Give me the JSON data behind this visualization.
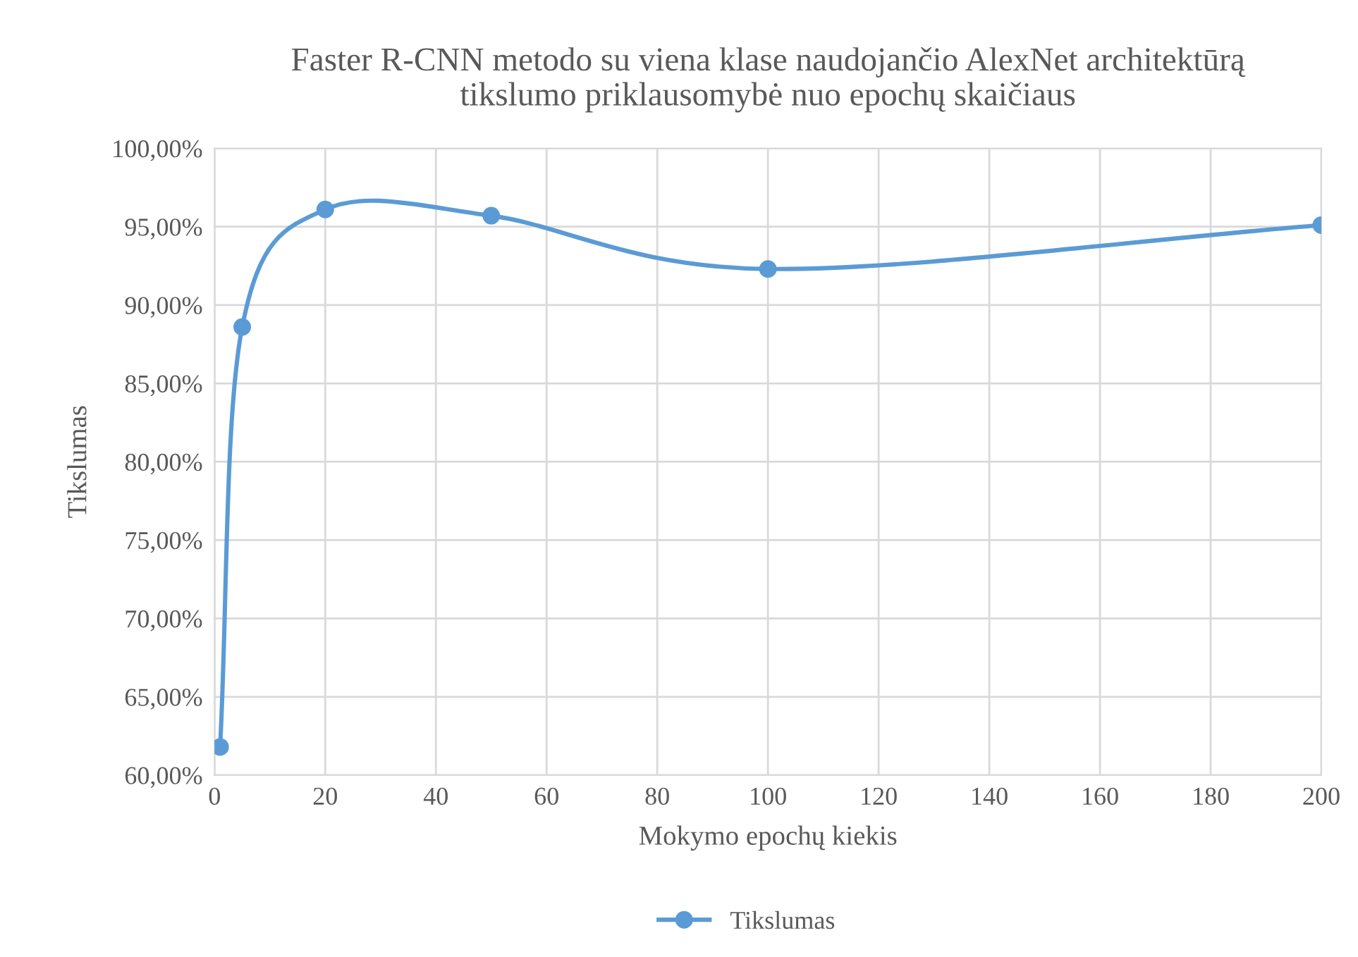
{
  "chart_data": {
    "type": "line",
    "title": "Faster R-CNN metodo su viena klase naudojančio AlexNet architektūrą\ntikslumo priklausomybė nuo epochų skaičiaus",
    "xlabel": "Mokymo epochų kiekis",
    "ylabel": "Tikslumas",
    "x": [
      1,
      5,
      20,
      50,
      100,
      200
    ],
    "series": [
      {
        "name": "Tikslumas",
        "color": "#5b9bd5",
        "values": [
          61.8,
          88.6,
          96.1,
          95.7,
          92.3,
          95.1
        ]
      }
    ],
    "xlim": [
      0,
      200
    ],
    "xticks": [
      0,
      20,
      40,
      60,
      80,
      100,
      120,
      140,
      160,
      180,
      200
    ],
    "ylim": [
      60,
      100
    ],
    "yticks": [
      {
        "value": 60,
        "label": "60,00%"
      },
      {
        "value": 65,
        "label": "65,00%"
      },
      {
        "value": 70,
        "label": "70,00%"
      },
      {
        "value": 75,
        "label": "75,00%"
      },
      {
        "value": 80,
        "label": "80,00%"
      },
      {
        "value": 85,
        "label": "85,00%"
      },
      {
        "value": 90,
        "label": "90,00%"
      },
      {
        "value": 95,
        "label": "95,00%"
      },
      {
        "value": 100,
        "label": "100,00%"
      }
    ],
    "grid": true,
    "legend": "bottom",
    "marker": "circle",
    "line_style": "solid"
  }
}
